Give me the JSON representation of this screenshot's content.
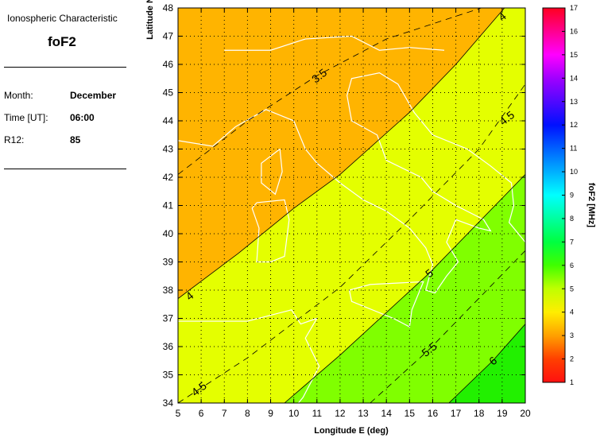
{
  "info_panel": {
    "heading": "Ionospheric Characteristic",
    "characteristic": "foF2",
    "fields": [
      {
        "label": "Month:",
        "value": "December"
      },
      {
        "label": "Time [UT]:",
        "value": "06:00"
      },
      {
        "label": "R12:",
        "value": "85"
      }
    ]
  },
  "chart_data": {
    "type": "heatmap",
    "xlabel": "Longitude E (deg)",
    "ylabel": "Latitude N (deg)",
    "xlim": [
      5,
      20
    ],
    "ylim": [
      34,
      48
    ],
    "xticks": [
      "5",
      "6",
      "7",
      "8",
      "9",
      "10",
      "11",
      "12",
      "13",
      "14",
      "15",
      "16",
      "17",
      "18",
      "19",
      "20"
    ],
    "yticks": [
      "34",
      "35",
      "36",
      "37",
      "38",
      "39",
      "40",
      "41",
      "42",
      "43",
      "44",
      "45",
      "46",
      "47",
      "48"
    ],
    "grid": true,
    "colorbar": {
      "label": "foF2 [MHz]",
      "range": [
        1,
        17
      ],
      "ticks": [
        "1",
        "2",
        "3",
        "4",
        "5",
        "6",
        "7",
        "8",
        "9",
        "10",
        "11",
        "12",
        "13",
        "14",
        "15",
        "16",
        "17"
      ]
    },
    "region_colors": {
      "below_4": "#ffb400",
      "4_to_5": "#e4ff00",
      "5_to_6": "#80ff00",
      "above_6": "#22f000"
    },
    "contours": [
      {
        "level": "3.5",
        "style": "dashed",
        "points": [
          [
            5,
            42.1
          ],
          [
            8,
            44
          ],
          [
            11,
            45.6
          ],
          [
            14,
            46.9
          ],
          [
            18.1,
            48
          ]
        ]
      },
      {
        "level": "4",
        "style": "solid",
        "points": [
          [
            5,
            37.7
          ],
          [
            7.6,
            39.3
          ],
          [
            10,
            40.9
          ],
          [
            12,
            42.1
          ],
          [
            15,
            44.3
          ],
          [
            17,
            46
          ],
          [
            19.1,
            48
          ]
        ]
      },
      {
        "level": "4.5",
        "style": "dashed",
        "points": [
          [
            5,
            34
          ],
          [
            8,
            35.6
          ],
          [
            12,
            38.1
          ],
          [
            15,
            40.5
          ],
          [
            18,
            43
          ],
          [
            20,
            45.3
          ]
        ]
      },
      {
        "level": "5",
        "style": "solid",
        "points": [
          [
            9.6,
            34
          ],
          [
            12,
            35.7
          ],
          [
            15.85,
            38.6
          ],
          [
            20,
            42.1
          ]
        ]
      },
      {
        "level": "5.5",
        "style": "dashed",
        "points": [
          [
            13.3,
            34
          ],
          [
            15.85,
            35.9
          ],
          [
            20,
            39.4
          ]
        ]
      },
      {
        "level": "6",
        "style": "solid",
        "points": [
          [
            16.7,
            34
          ],
          [
            18.6,
            35.5
          ],
          [
            20,
            36.8
          ]
        ]
      }
    ],
    "contour_labels": [
      {
        "text": "3.5",
        "lon": 11.1,
        "lat": 45.6
      },
      {
        "text": "4",
        "lon": 5.5,
        "lat": 37.8
      },
      {
        "text": "4",
        "lon": 19.0,
        "lat": 47.7
      },
      {
        "text": "4.5",
        "lon": 19.2,
        "lat": 44.1
      },
      {
        "text": "4.5",
        "lon": 5.9,
        "lat": 34.5
      },
      {
        "text": "5",
        "lon": 15.85,
        "lat": 38.6
      },
      {
        "text": "5.5",
        "lon": 15.85,
        "lat": 35.9
      },
      {
        "text": "6",
        "lon": 18.6,
        "lat": 35.5
      }
    ]
  }
}
